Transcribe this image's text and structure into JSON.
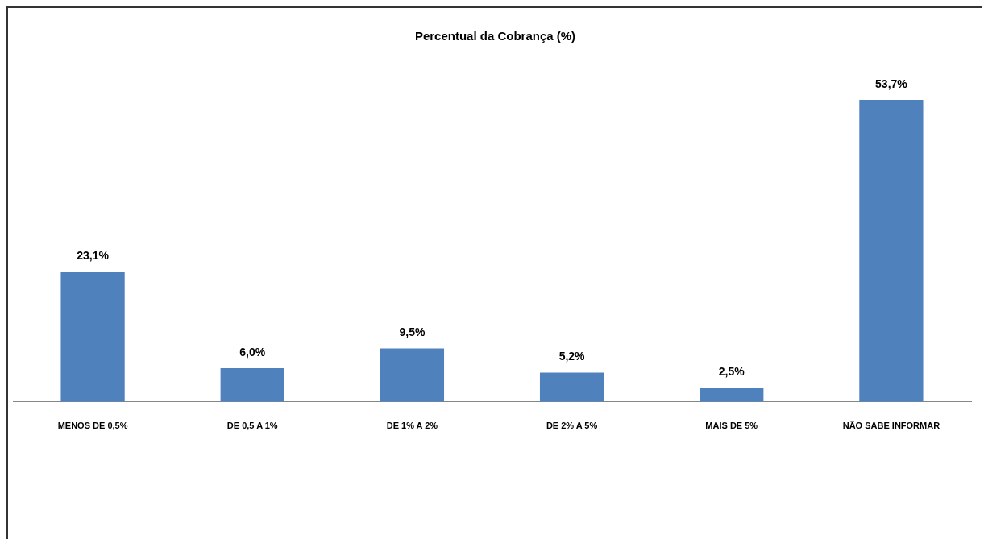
{
  "chart_data": {
    "type": "bar",
    "title": "Percentual da Cobrança (%)",
    "categories": [
      "MENOS DE 0,5%",
      "DE 0,5 A 1%",
      "DE 1% A 2%",
      "DE 2% A 5%",
      "MAIS DE 5%",
      "NÃO SABE INFORMAR"
    ],
    "values": [
      23.1,
      6.0,
      9.5,
      5.2,
      2.5,
      53.7
    ],
    "value_labels": [
      "23,1%",
      "6,0%",
      "9,5%",
      "5,2%",
      "2,5%",
      "53,7%"
    ],
    "color": "#4f81bd",
    "grid": false,
    "legend": false,
    "tick_labels": "x"
  }
}
